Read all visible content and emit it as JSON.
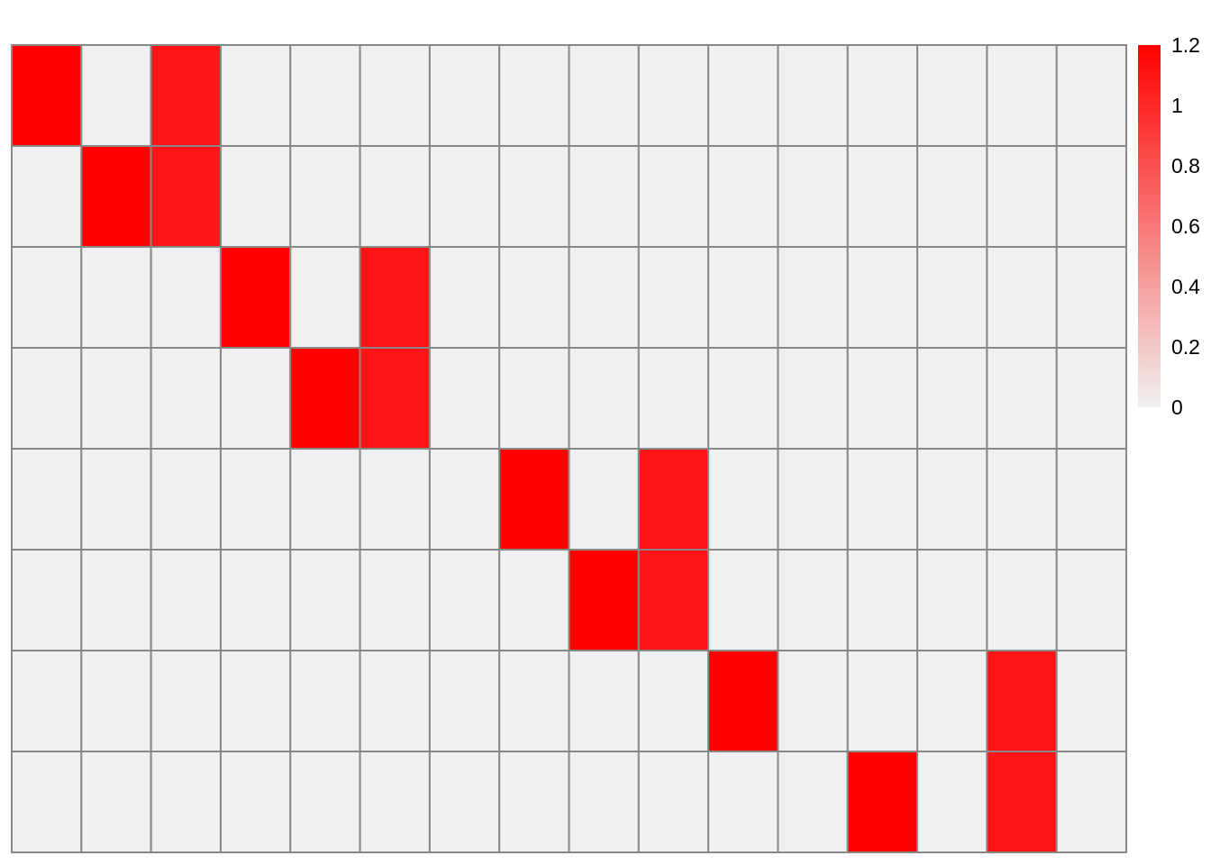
{
  "chart_data": {
    "type": "heatmap",
    "title": "",
    "xlabel": "",
    "ylabel": "",
    "n_rows": 8,
    "n_cols": 16,
    "row_labels": [],
    "col_labels": [],
    "values": [
      [
        1.2,
        0,
        1.1,
        0,
        0,
        0,
        0,
        0,
        0,
        0,
        0,
        0,
        0,
        0,
        0,
        0
      ],
      [
        0,
        1.2,
        1.1,
        0,
        0,
        0,
        0,
        0,
        0,
        0,
        0,
        0,
        0,
        0,
        0,
        0
      ],
      [
        0,
        0,
        0,
        1.2,
        0,
        1.1,
        0,
        0,
        0,
        0,
        0,
        0,
        0,
        0,
        0,
        0
      ],
      [
        0,
        0,
        0,
        0,
        1.2,
        1.1,
        0,
        0,
        0,
        0,
        0,
        0,
        0,
        0,
        0,
        0
      ],
      [
        0,
        0,
        0,
        0,
        0,
        0,
        0,
        1.2,
        0,
        1.1,
        0,
        0,
        0,
        0,
        0,
        0
      ],
      [
        0,
        0,
        0,
        0,
        0,
        0,
        0,
        0,
        1.2,
        1.1,
        0,
        0,
        0,
        0,
        0,
        0
      ],
      [
        0,
        0,
        0,
        0,
        0,
        0,
        0,
        0,
        0,
        0,
        1.2,
        0,
        0,
        0,
        1.1,
        0
      ],
      [
        0,
        0,
        0,
        0,
        0,
        0,
        0,
        0,
        0,
        0,
        0,
        0,
        1.2,
        0,
        1.1,
        0
      ]
    ],
    "color_scale": {
      "min": 0,
      "max": 1.2,
      "low_color": "#f0f0f0",
      "high_color": "#ff0000"
    },
    "grid_color": "#888888",
    "legend": {
      "placement": "right",
      "ticks": [
        "0",
        "0.2",
        "0.4",
        "0.6",
        "0.8",
        "1",
        "1.2"
      ]
    }
  }
}
